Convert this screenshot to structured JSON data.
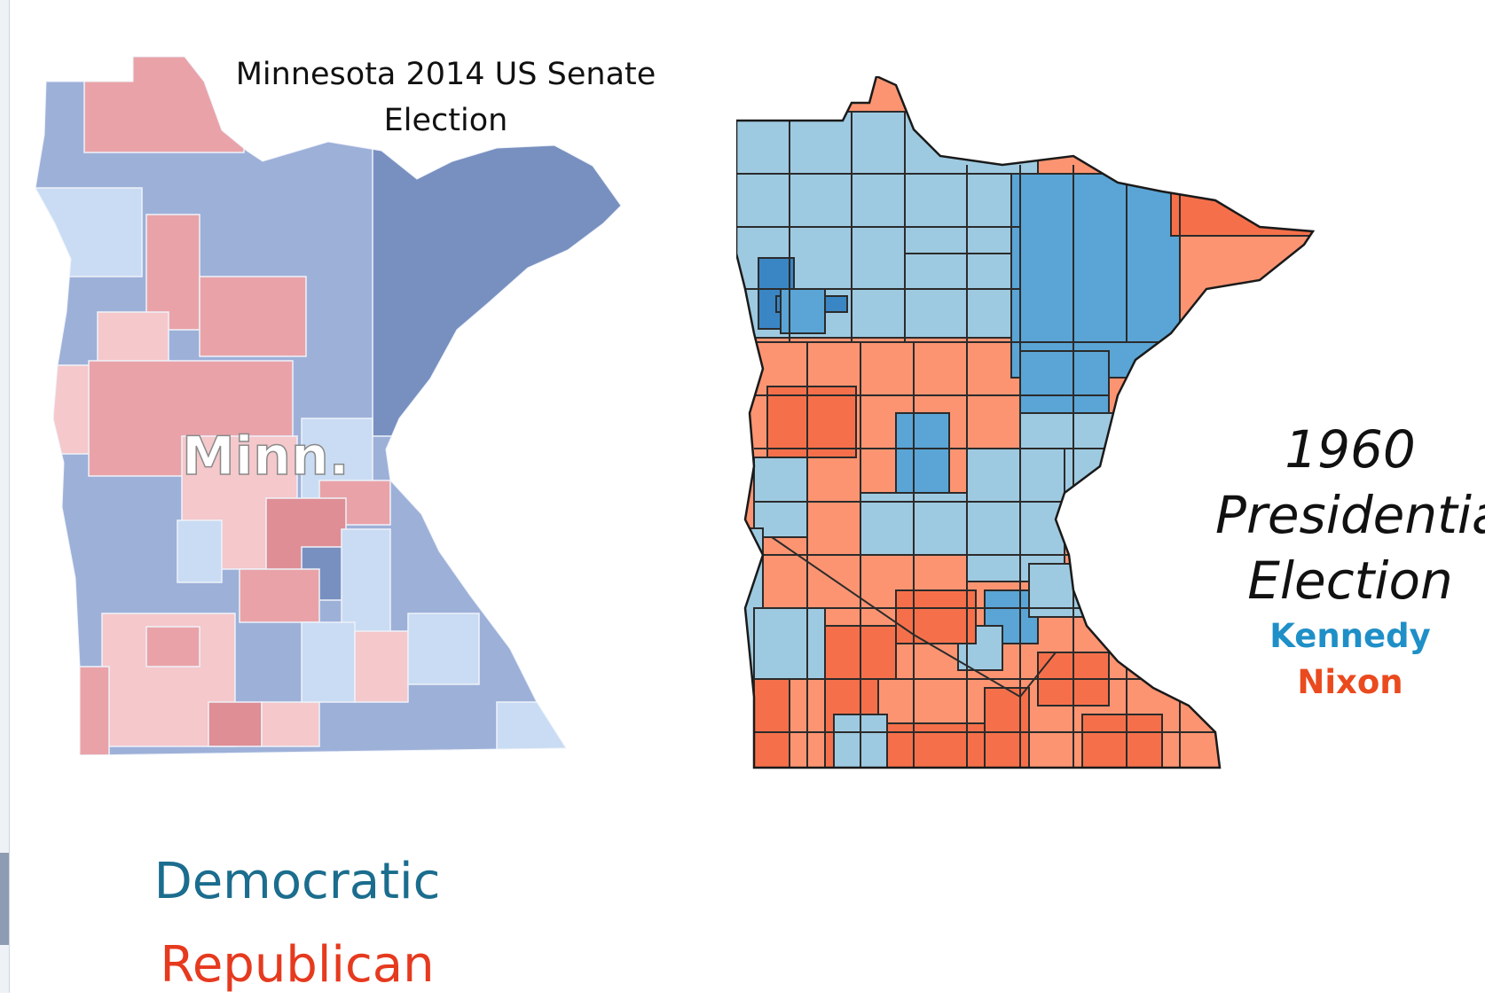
{
  "left_map": {
    "title_line1": "Minnesota 2014 US Senate",
    "title_line2": "Election",
    "state_label": "Minn.",
    "legend": {
      "democratic": "Democratic",
      "republican": "Republican"
    },
    "colors": {
      "dem_strong": "#7890c0",
      "dem": "#9db0d8",
      "dem_light": "#c9dcf3",
      "rep": "#e9a3a8",
      "rep_light": "#f5c8cb",
      "rep_strong": "#de8e94"
    }
  },
  "right_map": {
    "title_line1": "1960",
    "title_line2": "Presidential",
    "title_line3": "Election",
    "legend": {
      "kennedy": "Kennedy",
      "nixon": "Nixon"
    },
    "colors": {
      "kennedy_light": "#9ecae1",
      "kennedy": "#5aa5d6",
      "kennedy_strong": "#3a86c4",
      "nixon_light": "#fc9472",
      "nixon": "#f5704a",
      "nixon_strong": "#ee5a2f"
    }
  }
}
